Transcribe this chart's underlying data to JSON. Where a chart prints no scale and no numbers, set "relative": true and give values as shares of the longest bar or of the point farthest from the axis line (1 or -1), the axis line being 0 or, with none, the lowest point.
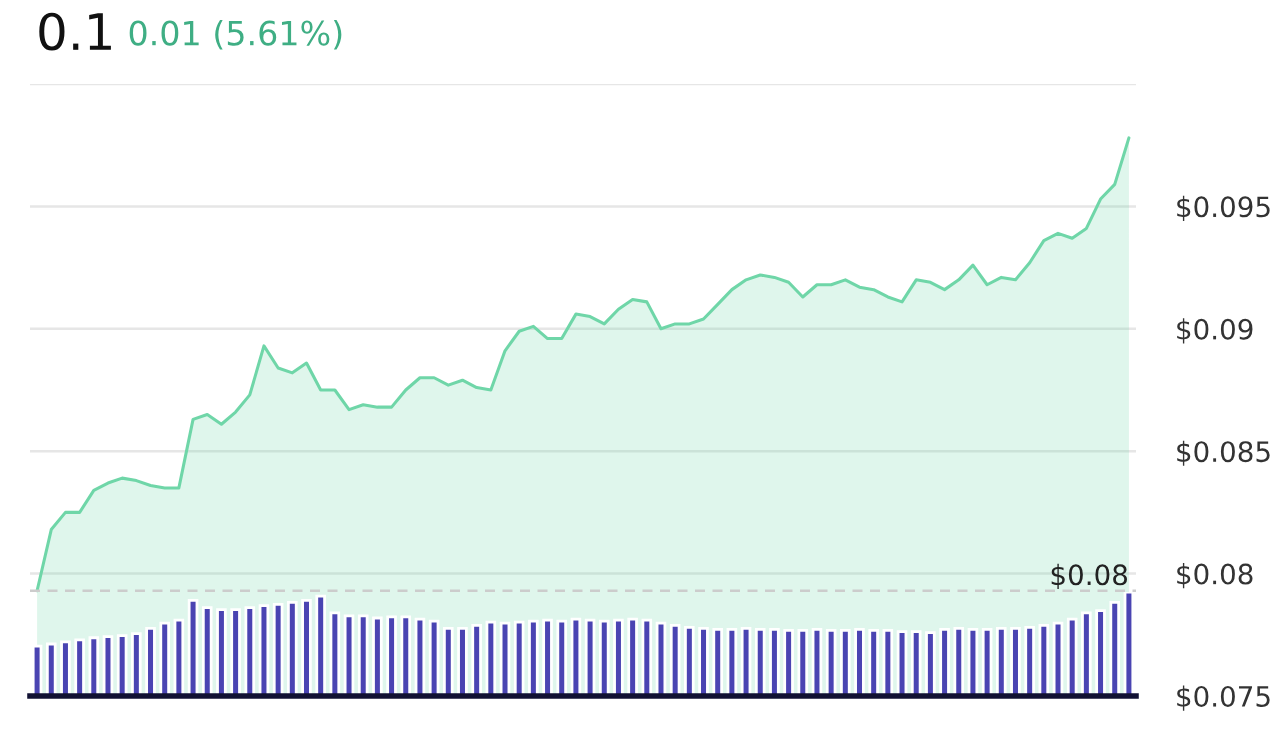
{
  "chart_data": [
    {
      "type": "area",
      "title": "0.1",
      "subtitle": "0.01 (5.61%)",
      "categories": [
        null,
        null,
        null,
        null,
        null,
        null,
        null,
        null,
        null,
        null,
        null,
        null,
        null,
        null,
        null,
        null,
        null,
        null,
        null,
        null,
        null,
        null,
        null,
        null,
        null,
        null,
        null,
        null,
        null,
        null,
        null,
        null,
        null,
        null,
        null,
        null,
        null,
        null,
        null,
        null,
        null,
        null,
        null,
        null,
        null,
        null,
        null,
        null,
        null,
        null,
        null,
        null,
        null,
        null,
        null,
        null,
        null,
        null,
        null,
        null,
        null,
        null,
        null,
        null,
        null,
        null,
        null,
        null,
        null,
        null,
        null,
        null,
        null,
        null,
        null,
        null,
        null,
        null
      ],
      "series": [
        {
          "color": "#6fd6a8",
          "values": [
            0.0793,
            0.0818,
            0.0825,
            0.0825,
            0.0834,
            0.0837,
            0.0839,
            0.0838,
            0.0836,
            0.0835,
            0.0835,
            0.0863,
            0.0865,
            0.0861,
            0.0866,
            0.0873,
            0.0893,
            0.0884,
            0.0882,
            0.0886,
            0.0875,
            0.0875,
            0.0867,
            0.0869,
            0.0868,
            0.0868,
            0.0875,
            0.088,
            0.088,
            0.0877,
            0.0879,
            0.0876,
            0.0875,
            0.0891,
            0.0899,
            0.0901,
            0.0896,
            0.0896,
            0.0906,
            0.0905,
            0.0902,
            0.0908,
            0.0912,
            0.0911,
            0.09,
            0.0902,
            0.0902,
            0.0904,
            0.091,
            0.0916,
            0.092,
            0.0922,
            0.0921,
            0.0919,
            0.0913,
            0.0918,
            0.0918,
            0.092,
            0.0917,
            0.0916,
            0.0913,
            0.0911,
            0.092,
            0.0919,
            0.0916,
            0.092,
            0.0926,
            0.0918,
            0.0921,
            0.092,
            0.0927,
            0.0936,
            0.0939,
            0.0937,
            0.0941,
            0.0953,
            0.0959,
            0.0978
          ]
        }
      ],
      "ylim": [
        0.075,
        0.1
      ],
      "yticks": [
        {
          "value": 0.075,
          "label": "$0.075"
        },
        {
          "value": 0.08,
          "label": "$0.08"
        },
        {
          "value": 0.085,
          "label": "$0.085"
        },
        {
          "value": 0.09,
          "label": "$0.09"
        },
        {
          "value": 0.095,
          "label": "$0.095"
        },
        {
          "value": 0.1,
          "label": null
        }
      ],
      "tick_labels": "y",
      "grid": "y",
      "ref_lines": [
        {
          "axis": "y",
          "value": 0.0793,
          "label": "$0.08",
          "color": "#cccccc",
          "line_style": "dashed"
        }
      ]
    },
    {
      "type": "bar",
      "relative": true,
      "categories": [
        null,
        null,
        null,
        null,
        null,
        null,
        null,
        null,
        null,
        null,
        null,
        null,
        null,
        null,
        null,
        null,
        null,
        null,
        null,
        null,
        null,
        null,
        null,
        null,
        null,
        null,
        null,
        null,
        null,
        null,
        null,
        null,
        null,
        null,
        null,
        null,
        null,
        null,
        null,
        null,
        null,
        null,
        null,
        null,
        null,
        null,
        null,
        null,
        null,
        null,
        null,
        null,
        null,
        null,
        null,
        null,
        null,
        null,
        null,
        null,
        null,
        null,
        null,
        null,
        null,
        null,
        null,
        null,
        null,
        null,
        null,
        null,
        null,
        null,
        null,
        null,
        null,
        null
      ],
      "series": [
        {
          "color": "#4a44b2",
          "values": [
            0.48,
            0.5,
            0.52,
            0.54,
            0.56,
            0.57,
            0.58,
            0.6,
            0.65,
            0.7,
            0.73,
            0.92,
            0.85,
            0.83,
            0.83,
            0.85,
            0.87,
            0.88,
            0.9,
            0.92,
            0.96,
            0.8,
            0.77,
            0.77,
            0.75,
            0.76,
            0.76,
            0.74,
            0.72,
            0.65,
            0.65,
            0.68,
            0.71,
            0.7,
            0.71,
            0.72,
            0.73,
            0.72,
            0.74,
            0.73,
            0.72,
            0.73,
            0.74,
            0.73,
            0.7,
            0.68,
            0.66,
            0.65,
            0.64,
            0.64,
            0.65,
            0.64,
            0.64,
            0.63,
            0.63,
            0.64,
            0.63,
            0.63,
            0.64,
            0.63,
            0.63,
            0.62,
            0.62,
            0.61,
            0.64,
            0.65,
            0.64,
            0.64,
            0.65,
            0.65,
            0.66,
            0.68,
            0.7,
            0.74,
            0.8,
            0.82,
            0.9,
            1.0
          ]
        }
      ]
    }
  ]
}
